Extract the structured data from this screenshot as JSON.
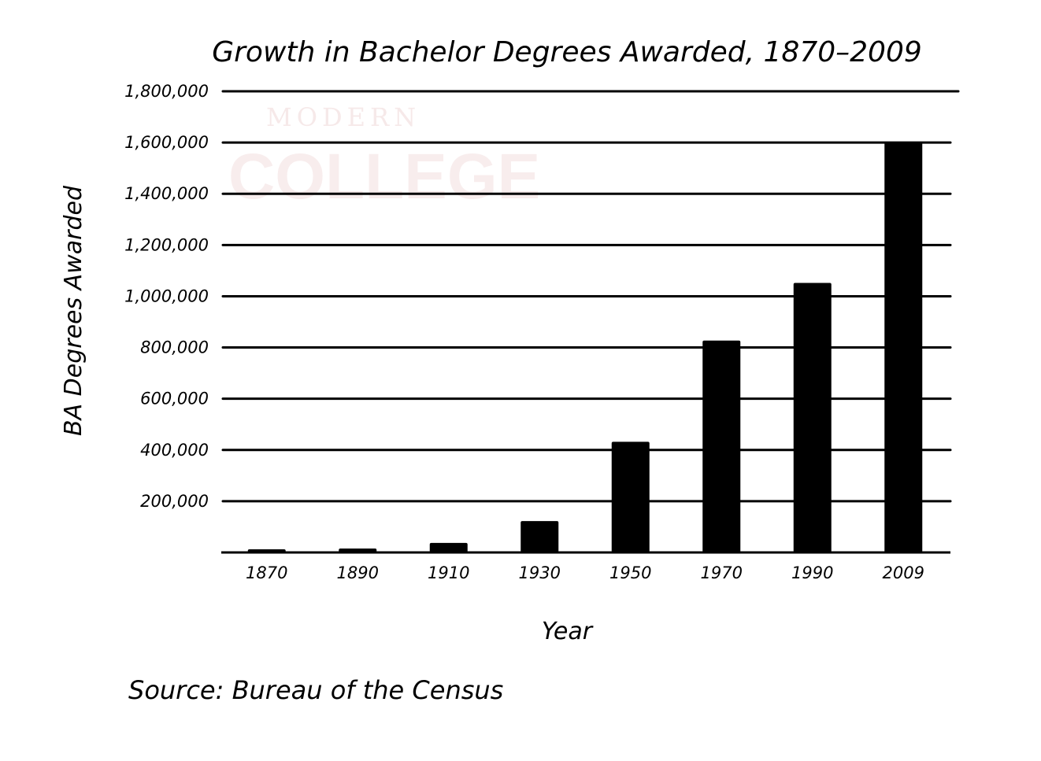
{
  "chart_data": {
    "type": "bar",
    "title": "Growth in Bachelor Degrees Awarded, 1870–2009",
    "xlabel": "Year",
    "ylabel": "BA Degrees Awarded",
    "categories": [
      "1870",
      "1890",
      "1910",
      "1930",
      "1950",
      "1970",
      "1990",
      "2009"
    ],
    "values": [
      9400,
      15500,
      37200,
      122500,
      432000,
      827000,
      1052000,
      1601000
    ],
    "ylim": [
      0,
      1800000
    ],
    "yticks": [
      200000,
      400000,
      600000,
      800000,
      1000000,
      1200000,
      1400000,
      1600000,
      1800000
    ],
    "ytick_labels": [
      "200,000",
      "400,000",
      "600,000",
      "800,000",
      "1,000,000",
      "1,200,000",
      "1,400,000",
      "1,600,000",
      "1,800,000"
    ],
    "grid": true,
    "legend": "none",
    "bar_color": "#000000"
  },
  "source": "Source: Bureau of the Census",
  "watermark": {
    "line1": "MODERN",
    "line2": "COLLEGE",
    "color": "#f8eded"
  }
}
